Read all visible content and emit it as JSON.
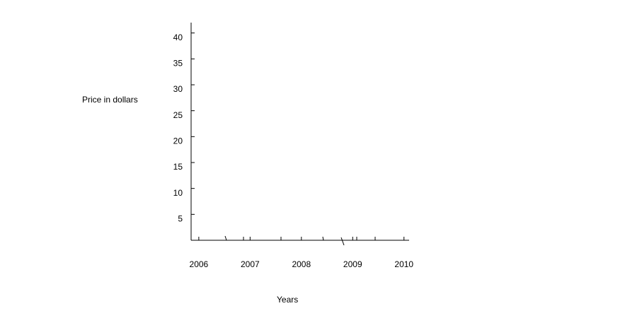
{
  "chart_data": {
    "type": "line",
    "x_label": "Years",
    "y_label": "Price in dollars",
    "xlim": [
      2005.85,
      2010.1
    ],
    "xticks": [
      2006,
      2007,
      2008,
      2009,
      2010
    ],
    "ylim": [
      0,
      42
    ],
    "yticks": [
      5,
      10,
      15,
      20,
      25,
      30,
      35,
      40
    ],
    "grid": false
  }
}
